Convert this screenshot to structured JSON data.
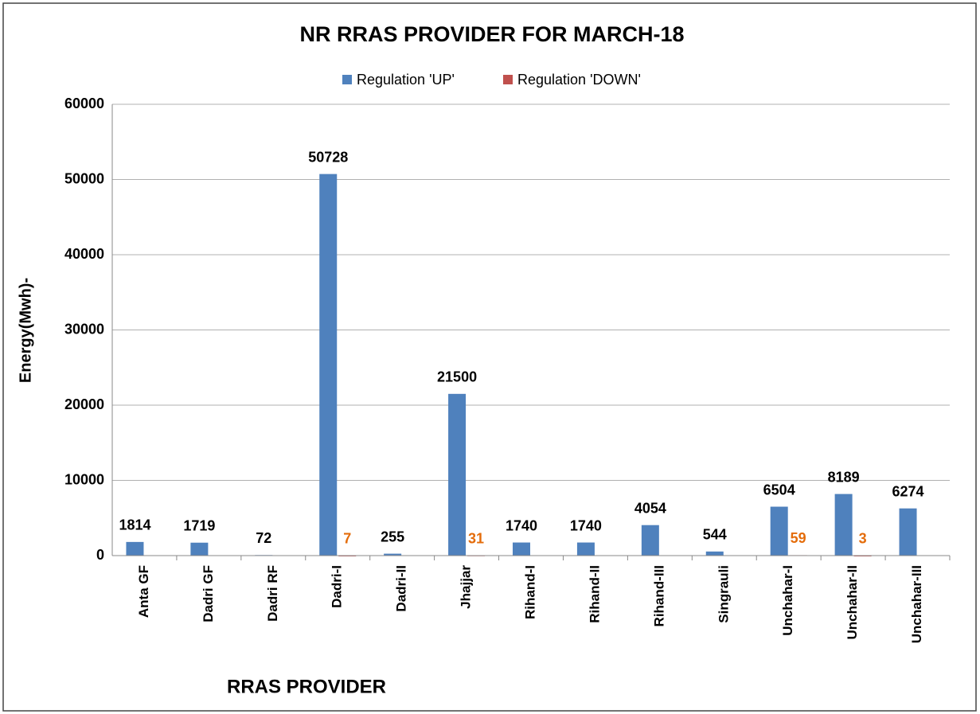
{
  "chart_data": {
    "type": "bar",
    "title": "NR RRAS PROVIDER FOR MARCH-18",
    "x_label": "RRAS PROVIDER",
    "y_label": "Energy(Mwh)-",
    "categories": [
      "Anta GF",
      "Dadri GF",
      "Dadri RF",
      "Dadri-I",
      "Dadri-II",
      "Jhajjar",
      "Rihand-I",
      "Rihand-II",
      "Rihand-III",
      "Singrauli",
      "Unchahar-I",
      "Unchahar-II",
      "Unchahar-III"
    ],
    "series": [
      {
        "name": "Regulation 'UP'",
        "color": "#4f81bd",
        "label_color": "#000000",
        "values": [
          1814,
          1719,
          72,
          50728,
          255,
          21500,
          1740,
          1740,
          4054,
          544,
          6504,
          8189,
          6274
        ]
      },
      {
        "name": "Regulation 'DOWN'",
        "color": "#c0504d",
        "label_color": "#e46c0a",
        "values": [
          null,
          null,
          null,
          7,
          null,
          31,
          null,
          null,
          null,
          null,
          59,
          3,
          null
        ]
      }
    ],
    "ylim": [
      0,
      60000
    ],
    "yticks": [
      0,
      10000,
      20000,
      30000,
      40000,
      50000,
      60000
    ],
    "grid": true,
    "legend": "top"
  }
}
